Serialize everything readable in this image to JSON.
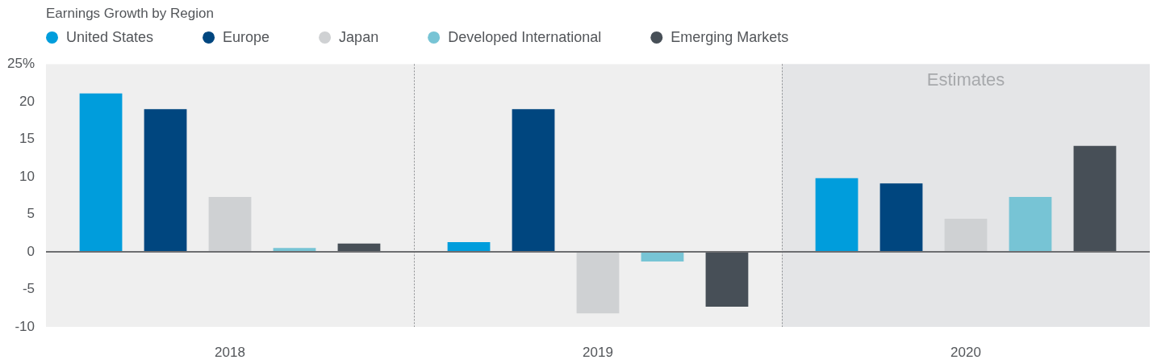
{
  "chart_data": {
    "type": "bar",
    "title": "Earnings Growth by Region",
    "categories": [
      "2018",
      "2019",
      "2020"
    ],
    "series": [
      {
        "name": "United States",
        "color": "#009ddc",
        "values": [
          21.1,
          1.3,
          9.8
        ]
      },
      {
        "name": "Europe",
        "color": "#00467f",
        "values": [
          19.0,
          19.0,
          9.1
        ]
      },
      {
        "name": "Japan",
        "color": "#cfd1d3",
        "values": [
          7.3,
          -8.2,
          4.4
        ]
      },
      {
        "name": "Developed International",
        "color": "#77c4d5",
        "values": [
          0.5,
          -1.3,
          7.3
        ]
      },
      {
        "name": "Emerging Markets",
        "color": "#474f57",
        "values": [
          1.1,
          -7.3,
          14.1
        ]
      }
    ],
    "ylim": [
      -10,
      25
    ],
    "yticks": [
      -10,
      -5,
      0,
      5,
      10,
      15,
      20,
      {
        "value": 25,
        "label": "25%"
      }
    ],
    "grid": "x",
    "legend": "top left",
    "bands": [
      {
        "axis": "x",
        "from": "2020",
        "to": "2020",
        "label": "Estimates",
        "color": "#e4e5e7"
      }
    ],
    "ref_lines": [
      {
        "axis": "y",
        "value": 0,
        "color": "#6d6e71"
      }
    ]
  }
}
